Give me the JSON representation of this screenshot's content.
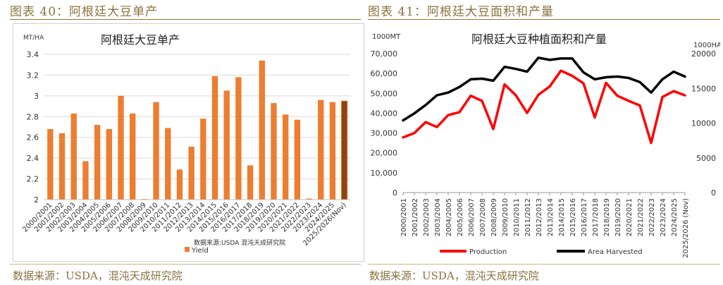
{
  "left": {
    "figure_title": "图表 40：阿根廷大豆单产",
    "source": "数据来源：USDA，混沌天成研究院"
  },
  "right": {
    "figure_title": "图表 41：阿根廷大豆面积和产量",
    "source": "数据来源：USDA，混沌天成研究院"
  },
  "colors": {
    "bar": "#ed7d31",
    "last_bar": "#8b4513",
    "production": "#ff0000",
    "area": "#000000",
    "header": "#8a7340"
  },
  "chart_data": [
    {
      "type": "bar",
      "title": "阿根廷大豆单产",
      "ylabel": "MT/HA",
      "ylim": [
        2,
        3.4
      ],
      "yticks": [
        "2",
        "2.2",
        "2.4",
        "2.6",
        "2.8",
        "3",
        "3.2",
        "3.4"
      ],
      "ytick_values": [
        2,
        2.2,
        2.4,
        2.6,
        2.8,
        3,
        3.2,
        3.4
      ],
      "categories": [
        "2000/2001",
        "2001/2002",
        "2002/2003",
        "2003/2004",
        "2004/2005",
        "2005/2006",
        "2006/2007",
        "2007/2008",
        "2008/2009",
        "2009/2010",
        "2010/2011",
        "2011/2012",
        "2012/2013",
        "2013/2014",
        "2014/2015",
        "2015/2016",
        "2016/2017",
        "2017/2018",
        "2018/2019",
        "2019/2020",
        "2020/2021",
        "2021/2022",
        "2022/2023",
        "2023/2024",
        "2024/2025",
        "2025/2026(Nov)"
      ],
      "values": [
        2.68,
        2.64,
        2.83,
        2.37,
        2.72,
        2.68,
        3.0,
        2.83,
        1.95,
        2.94,
        2.69,
        2.29,
        2.51,
        2.78,
        3.19,
        3.05,
        3.18,
        2.33,
        3.34,
        2.93,
        2.82,
        2.77,
        2.01,
        2.96,
        2.94,
        2.95
      ],
      "legend": [
        "Yield"
      ],
      "source_note": "数据来源:USDA  混沌天成研究院"
    },
    {
      "type": "line",
      "title": "阿根廷大豆种植面积和产量",
      "y_left_label": "1000MT",
      "y_right_label": "1000HA",
      "ylim_left": [
        0,
        70000
      ],
      "ylim_right": [
        0,
        20000
      ],
      "yticks_left": [
        "0",
        "10,000",
        "20,000",
        "30,000",
        "40,000",
        "50,000",
        "60,000",
        "70,000"
      ],
      "ytick_left_values": [
        0,
        10000,
        20000,
        30000,
        40000,
        50000,
        60000,
        70000
      ],
      "yticks_right": [
        "0",
        "5000",
        "10000",
        "15000",
        "20000"
      ],
      "ytick_right_values": [
        0,
        5000,
        10000,
        15000,
        20000
      ],
      "categories": [
        "2000/2001",
        "2001/2002",
        "2002/2003",
        "2003/2004",
        "2004/2005",
        "2005/2006",
        "2006/2007",
        "2007/2008",
        "2008/2009",
        "2009/2010",
        "2010/2011",
        "2011/2012",
        "2012/2013",
        "2013/2014",
        "2014/2015",
        "2015/2016",
        "2016/2017",
        "2017/2018",
        "2018/2019",
        "2019/2020",
        "2020/2021",
        "2021/2022",
        "2022/2023",
        "2023/2024",
        "2024/2025",
        "2025/2026 (Nov)"
      ],
      "series": [
        {
          "name": "Production",
          "axis": "left",
          "values": [
            27800,
            30000,
            35500,
            33000,
            39000,
            40500,
            48800,
            46200,
            32000,
            54500,
            49000,
            40100,
            49300,
            53400,
            61400,
            58800,
            55000,
            37800,
            55300,
            48800,
            46200,
            43900,
            25000,
            48100,
            51100,
            49000
          ]
        },
        {
          "name": "Area Harvested",
          "axis": "right",
          "values": [
            10400,
            11400,
            12600,
            14000,
            14400,
            15200,
            16300,
            16400,
            16100,
            18100,
            17800,
            17400,
            19400,
            19100,
            19300,
            19300,
            17300,
            16300,
            16600,
            16700,
            16500,
            15900,
            14400,
            16300,
            17400,
            16700
          ]
        }
      ]
    }
  ]
}
